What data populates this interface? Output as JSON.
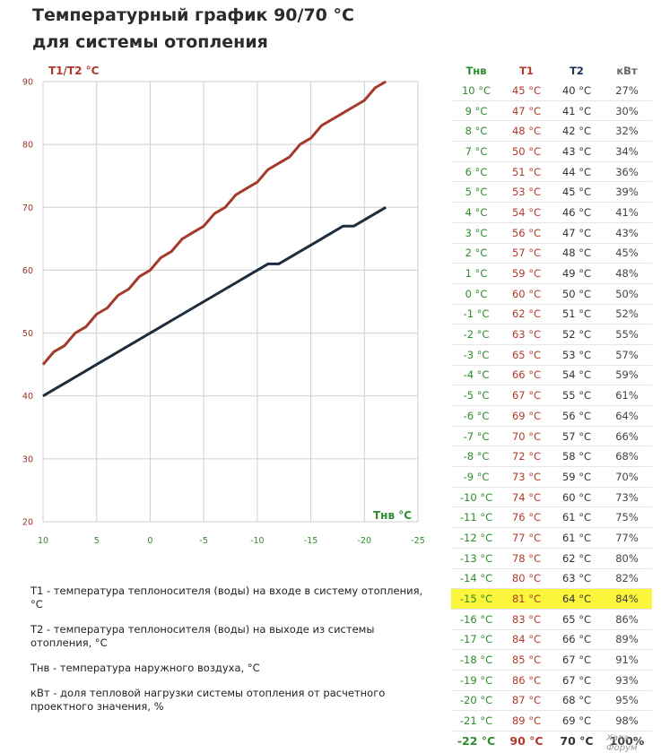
{
  "title_line1": "Температурный график 90/70 °С",
  "title_line2": "для системы отопления",
  "chart_data": {
    "type": "line",
    "ylabel": "Т1/Т2 °С",
    "xlabel": "Тнв °С",
    "xlim": [
      10,
      -25
    ],
    "ylim": [
      20,
      90
    ],
    "x_ticks": [
      "10",
      "5",
      "0",
      "-5",
      "-10",
      "-15",
      "-20",
      "-25"
    ],
    "y_ticks": [
      "90",
      "80",
      "70",
      "60",
      "50",
      "40",
      "30",
      "20"
    ],
    "grid": true,
    "x": [
      10,
      9,
      8,
      7,
      6,
      5,
      4,
      3,
      2,
      1,
      0,
      -1,
      -2,
      -3,
      -4,
      -5,
      -6,
      -7,
      -8,
      -9,
      -10,
      -11,
      -12,
      -13,
      -14,
      -15,
      -16,
      -17,
      -18,
      -19,
      -20,
      -21,
      -22
    ],
    "series": [
      {
        "name": "Т1",
        "color": "#a33a2c",
        "values": [
          45,
          47,
          48,
          50,
          51,
          53,
          54,
          56,
          57,
          59,
          60,
          62,
          63,
          65,
          66,
          67,
          69,
          70,
          72,
          73,
          74,
          76,
          77,
          78,
          80,
          81,
          83,
          84,
          85,
          86,
          87,
          89,
          90
        ]
      },
      {
        "name": "Т2",
        "color": "#1e2d3b",
        "values": [
          40,
          41,
          42,
          43,
          44,
          45,
          46,
          47,
          48,
          49,
          50,
          51,
          52,
          53,
          54,
          55,
          56,
          57,
          58,
          59,
          60,
          61,
          61,
          62,
          63,
          64,
          65,
          66,
          67,
          67,
          68,
          69,
          70
        ]
      }
    ]
  },
  "table": {
    "headers": [
      "Тнв",
      "Т1",
      "Т2",
      "кВт"
    ],
    "rows": [
      [
        "10 °С",
        "45 °С",
        "40 °С",
        "27%"
      ],
      [
        "9 °С",
        "47 °С",
        "41 °С",
        "30%"
      ],
      [
        "8 °С",
        "48 °С",
        "42 °С",
        "32%"
      ],
      [
        "7 °С",
        "50 °С",
        "43 °С",
        "34%"
      ],
      [
        "6 °С",
        "51 °С",
        "44 °С",
        "36%"
      ],
      [
        "5 °С",
        "53 °С",
        "45 °С",
        "39%"
      ],
      [
        "4 °С",
        "54 °С",
        "46 °С",
        "41%"
      ],
      [
        "3 °С",
        "56 °С",
        "47 °С",
        "43%"
      ],
      [
        "2 °С",
        "57 °С",
        "48 °С",
        "45%"
      ],
      [
        "1 °С",
        "59 °С",
        "49 °С",
        "48%"
      ],
      [
        "0 °С",
        "60 °С",
        "50 °С",
        "50%"
      ],
      [
        "-1 °С",
        "62 °С",
        "51 °С",
        "52%"
      ],
      [
        "-2 °С",
        "63 °С",
        "52 °С",
        "55%"
      ],
      [
        "-3 °С",
        "65 °С",
        "53 °С",
        "57%"
      ],
      [
        "-4 °С",
        "66 °С",
        "54 °С",
        "59%"
      ],
      [
        "-5 °С",
        "67 °С",
        "55 °С",
        "61%"
      ],
      [
        "-6 °С",
        "69 °С",
        "56 °С",
        "64%"
      ],
      [
        "-7 °С",
        "70 °С",
        "57 °С",
        "66%"
      ],
      [
        "-8 °С",
        "72 °С",
        "58 °С",
        "68%"
      ],
      [
        "-9 °С",
        "73 °С",
        "59 °С",
        "70%"
      ],
      [
        "-10 °С",
        "74 °С",
        "60 °С",
        "73%"
      ],
      [
        "-11 °С",
        "76 °С",
        "61 °С",
        "75%"
      ],
      [
        "-12 °С",
        "77 °С",
        "61 °С",
        "77%"
      ],
      [
        "-13 °С",
        "78 °С",
        "62 °С",
        "80%"
      ],
      [
        "-14 °С",
        "80 °С",
        "63 °С",
        "82%"
      ],
      [
        "-15 °С",
        "81 °С",
        "64 °С",
        "84%"
      ],
      [
        "-16 °С",
        "83 °С",
        "65 °С",
        "86%"
      ],
      [
        "-17 °С",
        "84 °С",
        "66 °С",
        "89%"
      ],
      [
        "-18 °С",
        "85 °С",
        "67 °С",
        "91%"
      ],
      [
        "-19 °С",
        "86 °С",
        "67 °С",
        "93%"
      ],
      [
        "-20 °С",
        "87 °С",
        "68 °С",
        "95%"
      ],
      [
        "-21 °С",
        "89 °С",
        "69 °С",
        "98%"
      ],
      [
        "-22 °С",
        "90 °С",
        "70 °С",
        "100%"
      ]
    ],
    "highlight_row": 25,
    "bold_row": 32,
    "highlight_color": "#fbf53b"
  },
  "legend": [
    "Т1 - температура теплоносителя (воды) на входе в систему отопления, °С",
    "Т2 - температура теплоносителя (воды) на выходе из системы отопления, °С",
    "Тнв - температура наружного воздуха, °С",
    "кВт - доля тепловой нагрузки системы отопления от расчетного проектного значения, %"
  ],
  "watermark": "Хата Форум"
}
